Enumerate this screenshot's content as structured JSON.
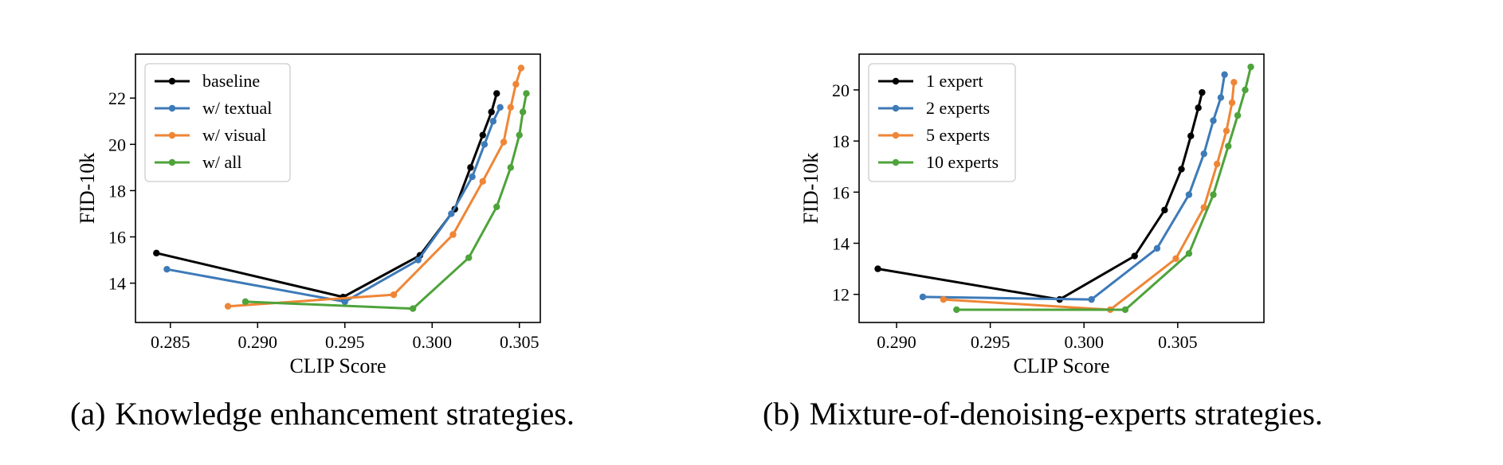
{
  "chart_data": [
    {
      "type": "line",
      "caption_tag": "(a)",
      "caption": "Knowledge enhancement strategies.",
      "xlabel": "CLIP Score",
      "ylabel": "FID-10k",
      "xlim": [
        0.283,
        0.3062
      ],
      "ylim": [
        12.3,
        23.9
      ],
      "xticks": [
        0.285,
        0.29,
        0.295,
        0.3,
        0.305
      ],
      "xtick_labels": [
        "0.285",
        "0.290",
        "0.295",
        "0.300",
        "0.305"
      ],
      "yticks": [
        14,
        16,
        18,
        20,
        22
      ],
      "ytick_labels": [
        "14",
        "16",
        "18",
        "20",
        "22"
      ],
      "legend_position": "upper-left",
      "grid": false,
      "series": [
        {
          "name": "baseline",
          "color": "#000000",
          "x": [
            0.2842,
            0.2949,
            0.2993,
            0.3013,
            0.3022,
            0.3029,
            0.3034,
            0.3037
          ],
          "y": [
            15.3,
            13.4,
            15.2,
            17.2,
            19.0,
            20.4,
            21.4,
            22.2
          ]
        },
        {
          "name": "w/ textual",
          "color": "#3d7ab8",
          "x": [
            0.2848,
            0.295,
            0.2992,
            0.3011,
            0.3023,
            0.303,
            0.3035,
            0.3039
          ],
          "y": [
            14.6,
            13.2,
            15.0,
            17.0,
            18.6,
            20.0,
            21.0,
            21.6
          ]
        },
        {
          "name": "w/ visual",
          "color": "#ef8636",
          "x": [
            0.2883,
            0.2978,
            0.3012,
            0.3029,
            0.3041,
            0.3045,
            0.3048,
            0.3051
          ],
          "y": [
            13.0,
            13.5,
            16.1,
            18.4,
            20.1,
            21.6,
            22.6,
            23.3
          ]
        },
        {
          "name": "w/ all",
          "color": "#4ea33a",
          "x": [
            0.2893,
            0.2989,
            0.3021,
            0.3037,
            0.3045,
            0.305,
            0.3052,
            0.3054
          ],
          "y": [
            13.2,
            12.9,
            15.1,
            17.3,
            19.0,
            20.4,
            21.4,
            22.2
          ]
        }
      ]
    },
    {
      "type": "line",
      "caption_tag": "(b)",
      "caption": "Mixture-of-denoising-experts strategies.",
      "xlabel": "CLIP Score",
      "ylabel": "FID-10k",
      "xlim": [
        0.288,
        0.3096
      ],
      "ylim": [
        10.9,
        21.4
      ],
      "xticks": [
        0.29,
        0.295,
        0.3,
        0.305
      ],
      "xtick_labels": [
        "0.290",
        "0.295",
        "0.300",
        "0.305"
      ],
      "yticks": [
        12,
        14,
        16,
        18,
        20
      ],
      "ytick_labels": [
        "12",
        "14",
        "16",
        "18",
        "20"
      ],
      "legend_position": "upper-left",
      "grid": false,
      "series": [
        {
          "name": "1 expert",
          "color": "#000000",
          "x": [
            0.289,
            0.2987,
            0.3027,
            0.3043,
            0.3052,
            0.3057,
            0.3061,
            0.3063
          ],
          "y": [
            13.0,
            11.8,
            13.5,
            15.3,
            16.9,
            18.2,
            19.3,
            19.9
          ]
        },
        {
          "name": "2 experts",
          "color": "#3d7ab8",
          "x": [
            0.2914,
            0.3004,
            0.3039,
            0.3056,
            0.3064,
            0.3069,
            0.3073,
            0.3075
          ],
          "y": [
            11.9,
            11.8,
            13.8,
            15.9,
            17.5,
            18.8,
            19.7,
            20.6
          ]
        },
        {
          "name": "5 experts",
          "color": "#ef8636",
          "x": [
            0.2925,
            0.3014,
            0.3049,
            0.3064,
            0.3071,
            0.3076,
            0.3079,
            0.308
          ],
          "y": [
            11.8,
            11.4,
            13.4,
            15.4,
            17.1,
            18.4,
            19.5,
            20.3
          ]
        },
        {
          "name": "10 experts",
          "color": "#4ea33a",
          "x": [
            0.2932,
            0.3022,
            0.3056,
            0.3069,
            0.3077,
            0.3082,
            0.3086,
            0.3089
          ],
          "y": [
            11.4,
            11.4,
            13.6,
            15.9,
            17.8,
            19.0,
            20.0,
            20.9
          ]
        }
      ]
    }
  ]
}
